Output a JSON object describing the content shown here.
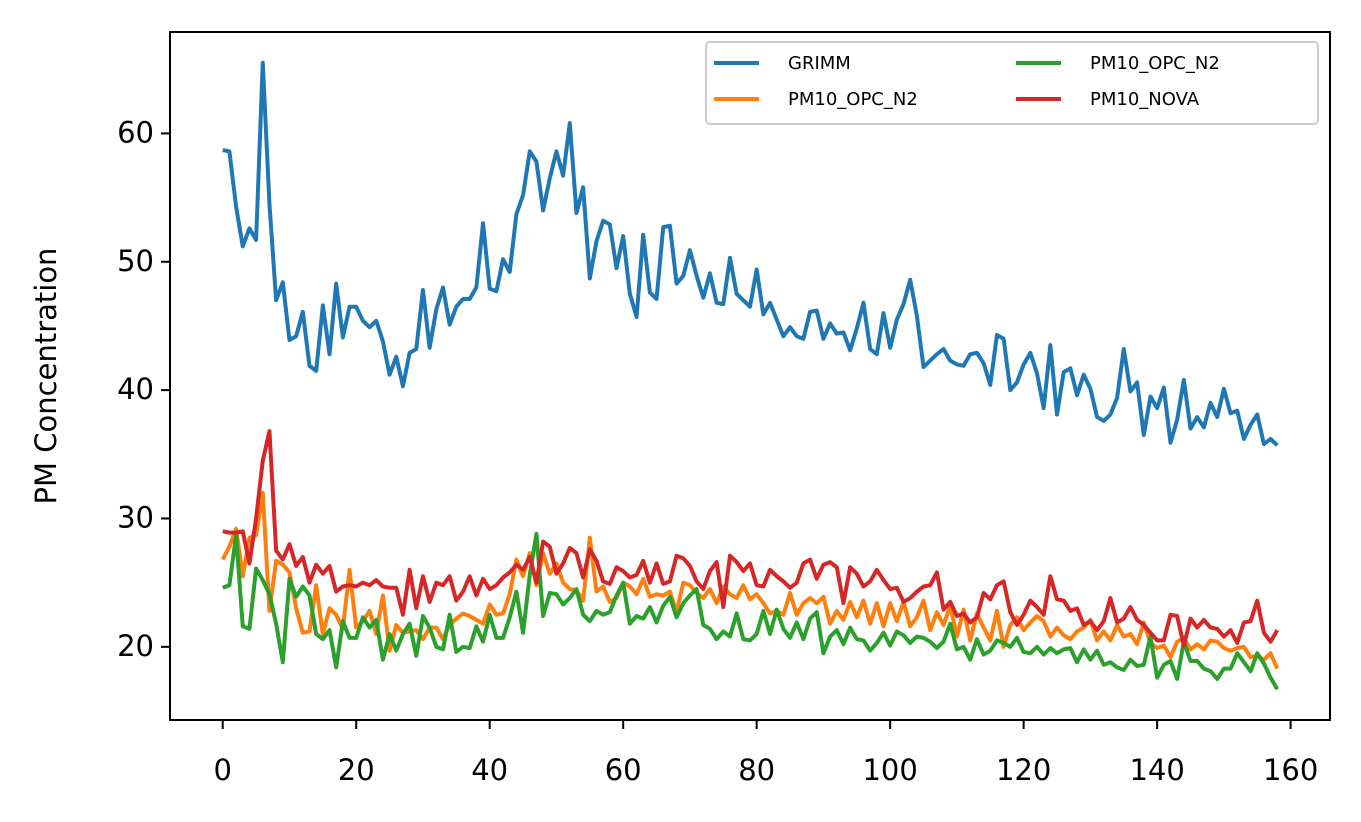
{
  "chart_data": {
    "type": "line",
    "ylabel": "PM Concentration",
    "x": [
      0,
      1,
      2,
      3,
      4,
      5,
      6,
      7,
      8,
      9,
      10,
      11,
      12,
      13,
      14,
      15,
      16,
      17,
      18,
      19,
      20,
      21,
      22,
      23,
      24,
      25,
      26,
      27,
      28,
      29,
      30,
      31,
      32,
      33,
      34,
      35,
      36,
      37,
      38,
      39,
      40,
      41,
      42,
      43,
      44,
      45,
      46,
      47,
      48,
      49,
      50,
      51,
      52,
      53,
      54,
      55,
      56,
      57,
      58,
      59,
      60,
      61,
      62,
      63,
      64,
      65,
      66,
      67,
      68,
      69,
      70,
      71,
      72,
      73,
      74,
      75,
      76,
      77,
      78,
      79,
      80,
      81,
      82,
      83,
      84,
      85,
      86,
      87,
      88,
      89,
      90,
      91,
      92,
      93,
      94,
      95,
      96,
      97,
      98,
      99,
      100,
      101,
      102,
      103,
      104,
      105,
      106,
      107,
      108,
      109,
      110,
      111,
      112,
      113,
      114,
      115,
      116,
      117,
      118,
      119,
      120,
      121,
      122,
      123,
      124,
      125,
      126,
      127,
      128,
      129,
      130,
      131,
      132,
      133,
      134,
      135,
      136,
      137,
      138,
      139,
      140,
      141,
      142,
      143,
      144,
      145,
      146,
      147,
      148,
      149,
      150,
      151,
      152,
      153,
      154,
      155,
      156,
      157,
      158
    ],
    "series": [
      {
        "name": "GRIMM",
        "color": "#1f77b4",
        "values": [
          58.7,
          58.6,
          54.3,
          51.2,
          52.6,
          51.7,
          65.5,
          54.5,
          47,
          48.4,
          43.9,
          44.2,
          46.1,
          41.9,
          41.5,
          46.6,
          42.8,
          48.3,
          44.1,
          46.5,
          46.5,
          45.4,
          44.9,
          45.4,
          43.8,
          41.2,
          42.6,
          40.3,
          42.9,
          43.2,
          47.8,
          43.3,
          46.3,
          48,
          45.1,
          46.5,
          47.1,
          47.1,
          48,
          53,
          47.9,
          47.7,
          50.2,
          49.2,
          53.7,
          55.2,
          58.6,
          57.8,
          54,
          56.5,
          58.6,
          56.7,
          60.8,
          53.8,
          55.8,
          48.7,
          51.6,
          53.2,
          52.9,
          49.5,
          52,
          47.5,
          45.7,
          52.1,
          47.6,
          47.1,
          52.7,
          52.8,
          48.3,
          48.9,
          50.9,
          48.9,
          47.2,
          49.1,
          46.8,
          46.7,
          50.3,
          47.5,
          47,
          46.5,
          49.4,
          45.9,
          46.8,
          45.5,
          44.2,
          44.9,
          44.2,
          44,
          46.1,
          46.2,
          44,
          45.2,
          44.4,
          44.5,
          43.1,
          44.8,
          46.8,
          43.2,
          42.8,
          46,
          43.3,
          45.5,
          46.7,
          48.6,
          45.8,
          41.8,
          42.3,
          42.8,
          43.2,
          42.3,
          42,
          41.9,
          42.8,
          42.9,
          42.1,
          40.4,
          44.3,
          44,
          40,
          40.6,
          42,
          42.9,
          41.3,
          38.6,
          43.5,
          38.1,
          41.4,
          41.7,
          39.6,
          41.2,
          40.1,
          37.9,
          37.6,
          38.1,
          39.4,
          43.2,
          39.9,
          40.6,
          36.5,
          39.5,
          38.6,
          40.2,
          35.9,
          37.7,
          40.8,
          37,
          37.9,
          37.1,
          39,
          37.9,
          40.1,
          38.2,
          38.4,
          36.2,
          37.3,
          38.1,
          35.8,
          36.2,
          35.7
        ]
      },
      {
        "name": "PM10_OPC_N2",
        "color": "#ff7f0e",
        "values": [
          26.8,
          27.8,
          29.2,
          25.5,
          28.5,
          28.7,
          32,
          22.8,
          26.7,
          26.4,
          25.8,
          23,
          21.1,
          21.2,
          24.8,
          21,
          23,
          22.5,
          21.4,
          26,
          21.5,
          22,
          22.8,
          21,
          24,
          19.7,
          21.7,
          21.1,
          21.2,
          21.3,
          20.6,
          21.5,
          21.5,
          20.6,
          21.7,
          22.2,
          22.6,
          22.4,
          22.1,
          21.8,
          23.3,
          22.5,
          22.6,
          24.1,
          26.8,
          25.5,
          27.3,
          24.8,
          27.3,
          25.7,
          26.5,
          25,
          24.5,
          24.4,
          23.6,
          28.5,
          24.3,
          24.7,
          23.5,
          23.8,
          25,
          24.7,
          24.1,
          25.3,
          23.9,
          24.1,
          24,
          24.3,
          22.7,
          25,
          24.8,
          24.2,
          23.8,
          24.5,
          23.4,
          24.7,
          24.1,
          23.8,
          24.8,
          23.7,
          24.1,
          23.4,
          22.6,
          22.8,
          22.5,
          24.2,
          22.5,
          23.4,
          23.8,
          23.4,
          23.9,
          21.8,
          22.8,
          22.1,
          23.5,
          22.3,
          23.6,
          21.8,
          23.4,
          21.6,
          23.4,
          22,
          23.5,
          21.6,
          22.3,
          23.6,
          21.3,
          22.7,
          21.7,
          23.2,
          20.8,
          22.9,
          20.5,
          22.6,
          21.5,
          20.5,
          22.8,
          20,
          21.7,
          22.3,
          21.3,
          21.9,
          22.4,
          22,
          20.8,
          21.5,
          20.9,
          20.6,
          21.2,
          21.5,
          22.1,
          20.5,
          21.2,
          20.5,
          21.7,
          20.8,
          21,
          20.2,
          21.9,
          20.3,
          19.9,
          20.1,
          19.2,
          20.4,
          20.7,
          19.8,
          20.2,
          19.8,
          20.5,
          20.4,
          19.9,
          19.7,
          19.9,
          20,
          19.2,
          19.3,
          19,
          19.5,
          18.3
        ]
      },
      {
        "name": "PM10_OPC_N2",
        "color": "#2ca02c",
        "values": [
          24.6,
          24.8,
          28.7,
          21.6,
          21.4,
          26.1,
          25.2,
          24.1,
          21.8,
          18.8,
          25.3,
          23.9,
          24.7,
          24,
          21,
          20.6,
          21.3,
          18.4,
          22,
          20.7,
          20.7,
          22.3,
          21.5,
          22.1,
          19,
          21,
          19.7,
          21,
          21.8,
          19.3,
          22.4,
          21.5,
          20,
          19.8,
          22.5,
          19.6,
          20,
          19.9,
          21.6,
          20.4,
          22.5,
          20.7,
          20.7,
          22.3,
          24.3,
          21.1,
          25.6,
          28.8,
          22.4,
          24.2,
          24.1,
          23.3,
          23.8,
          24.5,
          22.5,
          22,
          22.8,
          22.5,
          22.7,
          24,
          25,
          21.8,
          22.4,
          22.2,
          23.1,
          21.9,
          23.2,
          23.9,
          22.3,
          23.4,
          24,
          24.5,
          21.7,
          21.4,
          20.6,
          21.2,
          20.8,
          22.6,
          20.6,
          20.5,
          21,
          22.8,
          21,
          22.9,
          21.4,
          20.7,
          21.9,
          20.6,
          22.2,
          22.7,
          19.5,
          20.8,
          21.3,
          20.2,
          21.5,
          20.6,
          20.5,
          19.7,
          20.3,
          21.1,
          20.1,
          21.2,
          20.9,
          20.3,
          20.8,
          20.7,
          20.4,
          19.9,
          20.4,
          21.8,
          19.8,
          20,
          19,
          20.6,
          19.4,
          19.7,
          20.5,
          20.3,
          20,
          20.7,
          19.6,
          19.5,
          20,
          19.4,
          19.9,
          19.5,
          19.8,
          19.9,
          18.8,
          19.8,
          19,
          19.7,
          18.6,
          18.8,
          18.4,
          18.2,
          19,
          18.5,
          18.6,
          20.8,
          17.6,
          18.6,
          18.9,
          17.5,
          20.4,
          18.9,
          18.9,
          18.3,
          18.1,
          17.5,
          18.3,
          18.3,
          19.5,
          18.8,
          18.1,
          19.5,
          18.7,
          17.6,
          16.7
        ]
      },
      {
        "name": "PM10_NOVA",
        "color": "#d62728",
        "values": [
          29,
          28.9,
          28.9,
          29,
          26.5,
          30,
          34.5,
          36.8,
          27.5,
          26.8,
          28,
          26.3,
          27,
          25,
          26.4,
          25.7,
          26.3,
          24.3,
          24.7,
          24.8,
          24.7,
          25,
          24.8,
          25.2,
          24.7,
          24.6,
          24.6,
          22.5,
          26,
          23,
          25.5,
          23.5,
          25,
          24.8,
          25.5,
          23.6,
          24.3,
          25.5,
          24,
          25.3,
          24.5,
          24.8,
          25.4,
          25.8,
          26.4,
          26,
          27,
          25,
          28.2,
          27.8,
          25.7,
          26.5,
          27.7,
          27.3,
          25.4,
          27.6,
          26.7,
          25.1,
          24.9,
          26.2,
          25.9,
          25.4,
          25.6,
          26.7,
          25,
          26.5,
          24.9,
          25.1,
          27.1,
          26.9,
          26.3,
          25.1,
          24.5,
          25.9,
          26.6,
          23.1,
          27.1,
          26.6,
          25.9,
          26.5,
          24.8,
          24.7,
          26,
          25.5,
          25.1,
          24.6,
          25,
          26.5,
          26.8,
          25.3,
          26.4,
          26.6,
          26.2,
          23.4,
          26.2,
          25.7,
          24.7,
          25.1,
          26,
          25.2,
          24.5,
          24.6,
          23.5,
          23.8,
          24.3,
          24.7,
          24.8,
          25.8,
          22.9,
          23.5,
          22.4,
          22.6,
          21.9,
          22.3,
          24.2,
          23.7,
          24.8,
          25.1,
          22.7,
          21.7,
          22.5,
          23.6,
          23.1,
          22.5,
          25.5,
          23.7,
          23.6,
          22.8,
          23,
          21.7,
          22,
          21.3,
          22,
          23.8,
          21.9,
          22.2,
          23.1,
          22.1,
          21.7,
          21.1,
          20.5,
          20.5,
          22.5,
          22.4,
          20.1,
          22.2,
          21.5,
          22.1,
          21.5,
          21.4,
          20.8,
          21.3,
          20.3,
          21.9,
          22,
          23.6,
          21.1,
          20.4,
          21.3
        ]
      }
    ],
    "xlim": [
      -7.9,
      165.9
    ],
    "xticks": [
      0,
      20,
      40,
      60,
      80,
      100,
      120,
      140,
      160
    ],
    "ylim": [
      14.3,
      67.9
    ],
    "yticks": [
      20,
      30,
      40,
      50,
      60
    ],
    "legend": "upper right",
    "legend_columns": 2,
    "grid": false
  }
}
